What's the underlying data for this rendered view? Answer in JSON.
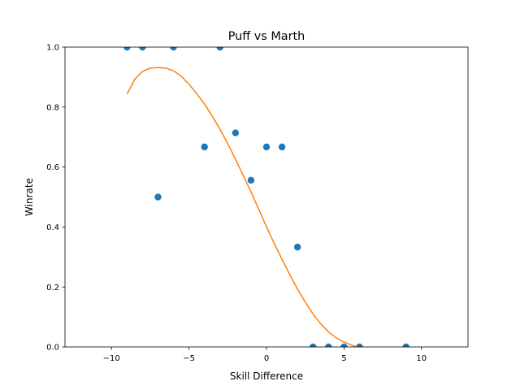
{
  "chart_data": {
    "type": "scatter",
    "title": "Puff vs Marth",
    "xlabel": "Skill Difference",
    "ylabel": "Winrate",
    "xlim": [
      -13,
      13
    ],
    "ylim": [
      0,
      1
    ],
    "xticks": [
      -10,
      -5,
      0,
      5,
      10
    ],
    "xtick_labels": [
      "−10",
      "−5",
      "0",
      "5",
      "10"
    ],
    "yticks": [
      0,
      0.2,
      0.4,
      0.6,
      0.8,
      1.0
    ],
    "ytick_labels": [
      "0.0",
      "0.2",
      "0.4",
      "0.6",
      "0.8",
      "1.0"
    ],
    "grid": false,
    "series": [
      {
        "kind": "scatter",
        "color": "#1f77b4",
        "x": [
          -9,
          -8,
          -7,
          -6,
          -4,
          -3,
          -2,
          -1,
          0,
          1,
          2,
          3,
          4,
          5,
          6,
          9
        ],
        "y": [
          1.0,
          1.0,
          0.5,
          1.0,
          0.667,
          1.0,
          0.714,
          0.556,
          0.667,
          0.667,
          0.333,
          0.0,
          0.0,
          0.0,
          0.0,
          0.0
        ]
      },
      {
        "kind": "line",
        "color": "#ff7f0e",
        "x": [
          -9,
          -8.5,
          -8,
          -7.5,
          -7,
          -6.5,
          -6,
          -5.5,
          -5,
          -4.5,
          -4,
          -3.5,
          -3,
          -2.5,
          -2,
          -1.5,
          -1,
          -0.5,
          0,
          0.5,
          1,
          1.5,
          2,
          2.5,
          3,
          3.5,
          4,
          4.5,
          5,
          5.5,
          5.9
        ],
        "y": [
          0.843,
          0.893,
          0.919,
          0.93,
          0.932,
          0.93,
          0.921,
          0.903,
          0.876,
          0.845,
          0.81,
          0.77,
          0.726,
          0.678,
          0.626,
          0.572,
          0.517,
          0.459,
          0.401,
          0.345,
          0.292,
          0.241,
          0.193,
          0.15,
          0.11,
          0.077,
          0.05,
          0.03,
          0.016,
          0.006,
          0.0
        ]
      }
    ]
  }
}
